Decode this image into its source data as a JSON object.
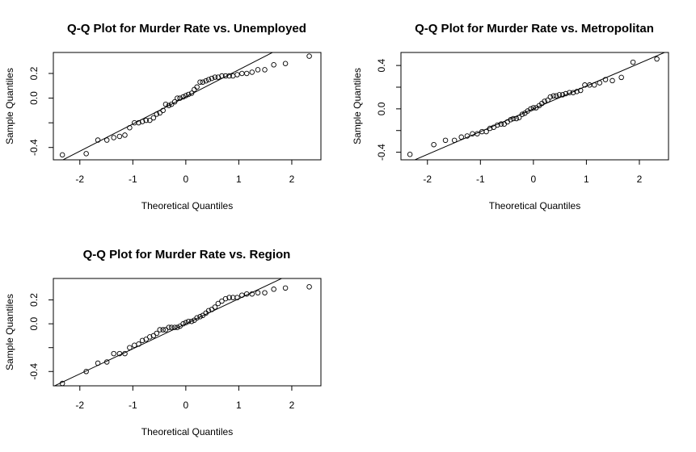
{
  "chart_data": [
    {
      "type": "scatter",
      "title": "Q-Q Plot for Murder Rate vs. Unemployed",
      "xlabel": "Theoretical Quantiles",
      "ylabel": "Sample Quantiles",
      "xlim": [
        -2.5,
        2.55
      ],
      "ylim": [
        -0.5,
        0.37
      ],
      "xticks": [
        -2,
        -1,
        0,
        1,
        2
      ],
      "xtick_labels": [
        "-2",
        "-1",
        "0",
        "1",
        "2"
      ],
      "yticks": [
        -0.4,
        -0.2,
        0.0,
        0.2
      ],
      "ytick_labels": [
        "-0.4",
        "",
        "0.0",
        "0.2"
      ],
      "grid": false,
      "qq_line": {
        "intercept": 0.01,
        "slope": 0.22
      },
      "points": [
        [
          -2.33,
          -0.46
        ],
        [
          -1.88,
          -0.45
        ],
        [
          -1.66,
          -0.34
        ],
        [
          -1.49,
          -0.34
        ],
        [
          -1.36,
          -0.32
        ],
        [
          -1.25,
          -0.31
        ],
        [
          -1.15,
          -0.3
        ],
        [
          -1.06,
          -0.24
        ],
        [
          -0.97,
          -0.2
        ],
        [
          -0.89,
          -0.2
        ],
        [
          -0.82,
          -0.19
        ],
        [
          -0.75,
          -0.18
        ],
        [
          -0.68,
          -0.18
        ],
        [
          -0.61,
          -0.16
        ],
        [
          -0.55,
          -0.13
        ],
        [
          -0.49,
          -0.12
        ],
        [
          -0.43,
          -0.1
        ],
        [
          -0.38,
          -0.05
        ],
        [
          -0.32,
          -0.06
        ],
        [
          -0.27,
          -0.05
        ],
        [
          -0.21,
          -0.03
        ],
        [
          -0.16,
          0.0
        ],
        [
          -0.11,
          0.0
        ],
        [
          -0.05,
          0.01
        ],
        [
          0.0,
          0.02
        ],
        [
          0.05,
          0.03
        ],
        [
          0.11,
          0.04
        ],
        [
          0.16,
          0.07
        ],
        [
          0.21,
          0.09
        ],
        [
          0.27,
          0.13
        ],
        [
          0.32,
          0.13
        ],
        [
          0.38,
          0.14
        ],
        [
          0.43,
          0.15
        ],
        [
          0.49,
          0.16
        ],
        [
          0.55,
          0.17
        ],
        [
          0.61,
          0.17
        ],
        [
          0.68,
          0.18
        ],
        [
          0.75,
          0.18
        ],
        [
          0.82,
          0.18
        ],
        [
          0.89,
          0.18
        ],
        [
          0.97,
          0.19
        ],
        [
          1.06,
          0.2
        ],
        [
          1.15,
          0.2
        ],
        [
          1.25,
          0.21
        ],
        [
          1.36,
          0.23
        ],
        [
          1.49,
          0.23
        ],
        [
          1.66,
          0.27
        ],
        [
          1.88,
          0.28
        ],
        [
          2.33,
          0.34
        ]
      ]
    },
    {
      "type": "scatter",
      "title": "Q-Q Plot for Murder Rate vs. Metropolitan",
      "xlabel": "Theoretical Quantiles",
      "ylabel": "Sample Quantiles",
      "xlim": [
        -2.5,
        2.55
      ],
      "ylim": [
        -0.47,
        0.52
      ],
      "xticks": [
        -2,
        -1,
        0,
        1,
        2
      ],
      "xtick_labels": [
        "-2",
        "-1",
        "0",
        "1",
        "2"
      ],
      "yticks": [
        -0.4,
        -0.2,
        0.0,
        0.2,
        0.4
      ],
      "ytick_labels": [
        "-0.4",
        "",
        "0.0",
        "",
        "0.4"
      ],
      "grid": false,
      "qq_line": {
        "intercept": 0.0,
        "slope": 0.21
      },
      "points": [
        [
          -2.33,
          -0.42
        ],
        [
          -1.88,
          -0.33
        ],
        [
          -1.66,
          -0.29
        ],
        [
          -1.49,
          -0.29
        ],
        [
          -1.36,
          -0.26
        ],
        [
          -1.25,
          -0.25
        ],
        [
          -1.15,
          -0.23
        ],
        [
          -1.06,
          -0.23
        ],
        [
          -0.97,
          -0.21
        ],
        [
          -0.89,
          -0.21
        ],
        [
          -0.82,
          -0.18
        ],
        [
          -0.75,
          -0.17
        ],
        [
          -0.68,
          -0.15
        ],
        [
          -0.61,
          -0.14
        ],
        [
          -0.55,
          -0.14
        ],
        [
          -0.49,
          -0.12
        ],
        [
          -0.43,
          -0.1
        ],
        [
          -0.38,
          -0.09
        ],
        [
          -0.32,
          -0.09
        ],
        [
          -0.27,
          -0.08
        ],
        [
          -0.21,
          -0.05
        ],
        [
          -0.16,
          -0.04
        ],
        [
          -0.11,
          -0.02
        ],
        [
          -0.05,
          0.0
        ],
        [
          0.0,
          0.01
        ],
        [
          0.05,
          0.01
        ],
        [
          0.11,
          0.03
        ],
        [
          0.16,
          0.05
        ],
        [
          0.21,
          0.07
        ],
        [
          0.27,
          0.08
        ],
        [
          0.32,
          0.11
        ],
        [
          0.38,
          0.12
        ],
        [
          0.43,
          0.12
        ],
        [
          0.49,
          0.13
        ],
        [
          0.55,
          0.13
        ],
        [
          0.61,
          0.14
        ],
        [
          0.68,
          0.15
        ],
        [
          0.75,
          0.15
        ],
        [
          0.82,
          0.16
        ],
        [
          0.89,
          0.17
        ],
        [
          0.97,
          0.22
        ],
        [
          1.06,
          0.22
        ],
        [
          1.15,
          0.22
        ],
        [
          1.25,
          0.24
        ],
        [
          1.36,
          0.27
        ],
        [
          1.49,
          0.26
        ],
        [
          1.66,
          0.29
        ],
        [
          1.88,
          0.43
        ],
        [
          2.33,
          0.46
        ]
      ]
    },
    {
      "type": "scatter",
      "title": "Q-Q Plot for Murder Rate vs. Region",
      "xlabel": "Theoretical Quantiles",
      "ylabel": "Sample Quantiles",
      "xlim": [
        -2.5,
        2.55
      ],
      "ylim": [
        -0.52,
        0.38
      ],
      "xticks": [
        -2,
        -1,
        0,
        1,
        2
      ],
      "xtick_labels": [
        "-2",
        "-1",
        "0",
        "1",
        "2"
      ],
      "yticks": [
        -0.4,
        -0.2,
        0.0,
        0.2
      ],
      "ytick_labels": [
        "-0.4",
        "",
        "0.0",
        "0.2"
      ],
      "grid": false,
      "qq_line": {
        "intercept": 0.0,
        "slope": 0.21
      },
      "points": [
        [
          -2.33,
          -0.5
        ],
        [
          -1.88,
          -0.4
        ],
        [
          -1.66,
          -0.33
        ],
        [
          -1.49,
          -0.32
        ],
        [
          -1.36,
          -0.25
        ],
        [
          -1.25,
          -0.25
        ],
        [
          -1.15,
          -0.25
        ],
        [
          -1.06,
          -0.2
        ],
        [
          -0.97,
          -0.18
        ],
        [
          -0.89,
          -0.17
        ],
        [
          -0.82,
          -0.14
        ],
        [
          -0.75,
          -0.13
        ],
        [
          -0.68,
          -0.11
        ],
        [
          -0.61,
          -0.1
        ],
        [
          -0.55,
          -0.08
        ],
        [
          -0.49,
          -0.05
        ],
        [
          -0.43,
          -0.05
        ],
        [
          -0.38,
          -0.05
        ],
        [
          -0.32,
          -0.03
        ],
        [
          -0.27,
          -0.03
        ],
        [
          -0.21,
          -0.03
        ],
        [
          -0.16,
          -0.03
        ],
        [
          -0.11,
          -0.02
        ],
        [
          -0.05,
          0.0
        ],
        [
          0.0,
          0.01
        ],
        [
          0.05,
          0.02
        ],
        [
          0.11,
          0.02
        ],
        [
          0.16,
          0.03
        ],
        [
          0.21,
          0.05
        ],
        [
          0.27,
          0.06
        ],
        [
          0.32,
          0.07
        ],
        [
          0.38,
          0.09
        ],
        [
          0.43,
          0.11
        ],
        [
          0.49,
          0.12
        ],
        [
          0.55,
          0.14
        ],
        [
          0.61,
          0.17
        ],
        [
          0.68,
          0.19
        ],
        [
          0.75,
          0.21
        ],
        [
          0.82,
          0.22
        ],
        [
          0.89,
          0.22
        ],
        [
          0.97,
          0.22
        ],
        [
          1.06,
          0.24
        ],
        [
          1.15,
          0.25
        ],
        [
          1.25,
          0.25
        ],
        [
          1.36,
          0.26
        ],
        [
          1.49,
          0.26
        ],
        [
          1.66,
          0.29
        ],
        [
          1.88,
          0.3
        ],
        [
          2.33,
          0.31
        ]
      ]
    }
  ]
}
